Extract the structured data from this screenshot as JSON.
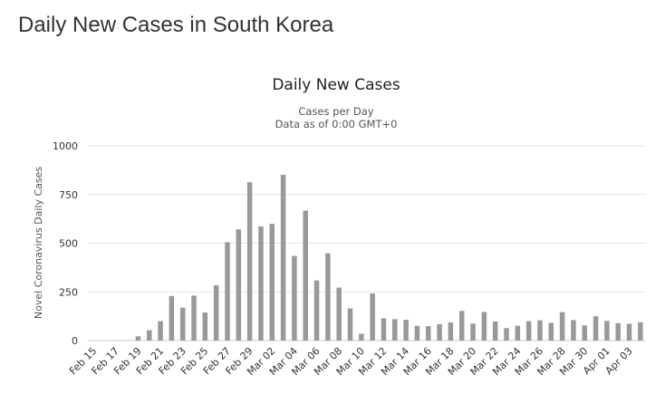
{
  "page": {
    "title": "Daily New Cases in South Korea"
  },
  "chart_data": {
    "type": "bar",
    "title": "Daily New Cases",
    "subtitle": "Cases per Day",
    "subtitle2": "Data as of 0:00 GMT+0",
    "xlabel": "",
    "ylabel": "Novel Coronavirus Daily Cases",
    "ylim": [
      0,
      1000
    ],
    "yticks": [
      0,
      250,
      500,
      750,
      1000
    ],
    "grid": true,
    "legend": "none",
    "bar_color": "#999999",
    "categories": [
      "Feb 15",
      "Feb 16",
      "Feb 17",
      "Feb 18",
      "Feb 19",
      "Feb 20",
      "Feb 21",
      "Feb 22",
      "Feb 23",
      "Feb 24",
      "Feb 25",
      "Feb 26",
      "Feb 27",
      "Feb 28",
      "Feb 29",
      "Mar 01",
      "Mar 02",
      "Mar 03",
      "Mar 04",
      "Mar 05",
      "Mar 06",
      "Mar 07",
      "Mar 08",
      "Mar 09",
      "Mar 10",
      "Mar 11",
      "Mar 12",
      "Mar 13",
      "Mar 14",
      "Mar 15",
      "Mar 16",
      "Mar 17",
      "Mar 18",
      "Mar 19",
      "Mar 20",
      "Mar 21",
      "Mar 22",
      "Mar 23",
      "Mar 24",
      "Mar 25",
      "Mar 26",
      "Mar 27",
      "Mar 28",
      "Mar 29",
      "Mar 30",
      "Mar 31",
      "Apr 01",
      "Apr 02",
      "Apr 03",
      "Apr 04"
    ],
    "values": [
      0,
      0,
      1,
      1,
      22,
      53,
      100,
      229,
      169,
      231,
      144,
      284,
      505,
      571,
      813,
      586,
      599,
      851,
      435,
      667,
      309,
      448,
      272,
      165,
      35,
      242,
      114,
      110,
      107,
      76,
      74,
      84,
      93,
      152,
      87,
      147,
      98,
      64,
      76,
      100,
      104,
      91,
      146,
      105,
      78,
      125,
      101,
      89,
      86,
      94
    ],
    "tick_labels": [
      "Feb 15",
      "Feb 17",
      "Feb 19",
      "Feb 21",
      "Feb 23",
      "Feb 25",
      "Feb 27",
      "Feb 29",
      "Mar 02",
      "Mar 04",
      "Mar 06",
      "Mar 08",
      "Mar 10",
      "Mar 12",
      "Mar 14",
      "Mar 16",
      "Mar 18",
      "Mar 20",
      "Mar 22",
      "Mar 24",
      "Mar 26",
      "Mar 28",
      "Mar 30",
      "Apr 01",
      "Apr 03"
    ]
  }
}
